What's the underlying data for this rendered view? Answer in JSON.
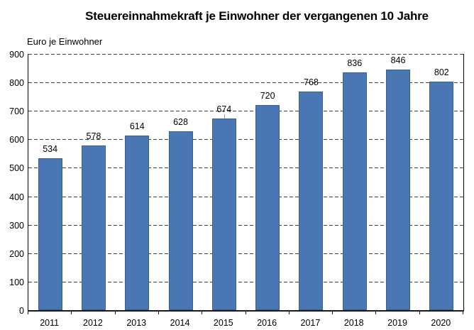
{
  "title": "Steuereinnahmekraft je Einwohner der vergangenen 10 Jahre",
  "chart_data": {
    "type": "bar",
    "title": "Steuereinnahmekraft je Einwohner der vergangenen 10 Jahre",
    "ylabel": "Euro je Einwohner",
    "xlabel": "",
    "categories": [
      "2011",
      "2012",
      "2013",
      "2014",
      "2015",
      "2016",
      "2017",
      "2018",
      "2019",
      "2020"
    ],
    "values": [
      534,
      578,
      614,
      628,
      674,
      720,
      768,
      836,
      846,
      802
    ],
    "ylim": [
      0,
      900
    ],
    "yticks": [
      0,
      100,
      200,
      300,
      400,
      500,
      600,
      700,
      800,
      900
    ],
    "grid": "horizontal-dashed",
    "legend": "none",
    "value_labels": true,
    "bar_color": "#4a77b4",
    "bar_border_color": "#3a5f94",
    "gridline_color": "#404040",
    "axis_color": "#000000"
  }
}
